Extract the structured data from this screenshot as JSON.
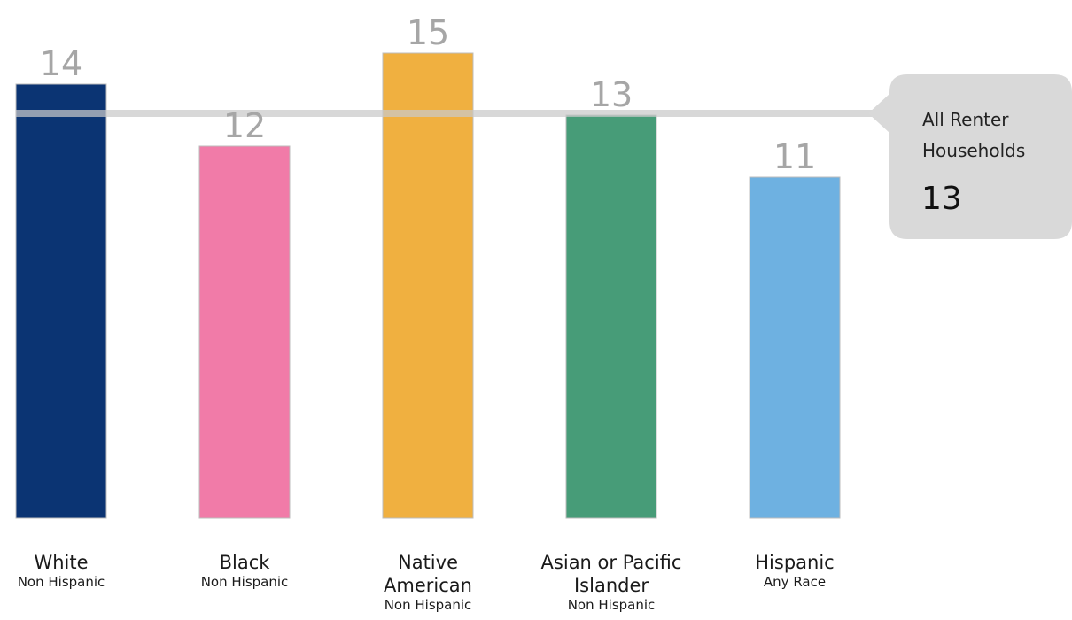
{
  "chart_data": {
    "type": "bar",
    "title": "",
    "xlabel": "",
    "ylabel": "",
    "ylim": [
      0,
      16
    ],
    "grid": false,
    "categories": [
      {
        "lines": [
          "White"
        ],
        "sub": "Non Hispanic"
      },
      {
        "lines": [
          "Black"
        ],
        "sub": "Non Hispanic"
      },
      {
        "lines": [
          "Native",
          "American"
        ],
        "sub": "Non Hispanic"
      },
      {
        "lines": [
          "Asian or Pacific",
          "Islander"
        ],
        "sub": "Non Hispanic"
      },
      {
        "lines": [
          "Hispanic"
        ],
        "sub": "Any Race"
      }
    ],
    "values": [
      14,
      12,
      15,
      13,
      11
    ],
    "colors": [
      "#0b3473",
      "#f17ba8",
      "#f0b040",
      "#479c78",
      "#6eb1e1"
    ],
    "reference": {
      "value": 13,
      "label_lines": [
        "All Renter",
        "Households"
      ],
      "value_text": "13",
      "color": "#c9c9c9",
      "callout_bg": "#d9d9d9"
    }
  }
}
